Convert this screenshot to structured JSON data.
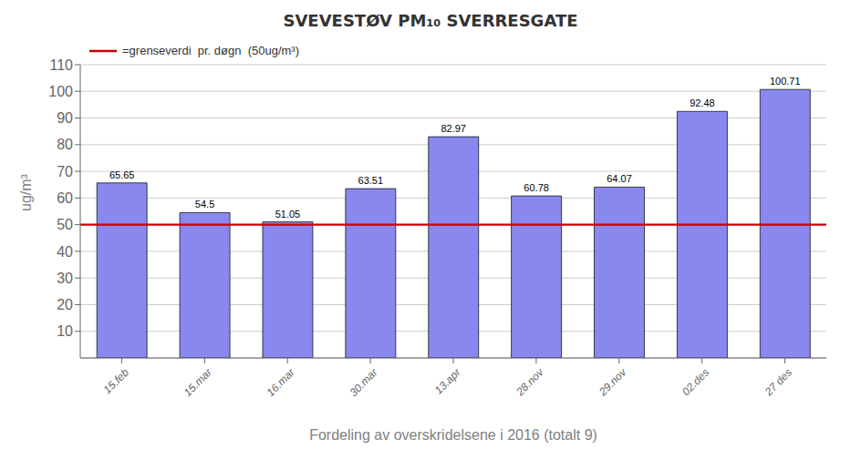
{
  "chart_data": {
    "type": "bar",
    "title": "SVEVESTØV PM₁₀ SVERRESGATE",
    "xlabel": "Fordeling av overskridelsene i 2016 (totalt 9)",
    "ylabel": "ug/m³",
    "categories": [
      "15.feb",
      "15.mar",
      "16.mar",
      "30.mar",
      "13.apr",
      "28.nov",
      "29.nov",
      "02.des",
      "27 des"
    ],
    "values": [
      65.65,
      54.5,
      51.05,
      63.51,
      82.97,
      60.78,
      64.07,
      92.48,
      100.71
    ],
    "color": "#8888ee",
    "ylim": [
      0,
      110
    ],
    "yticks": [
      10,
      20,
      30,
      40,
      50,
      60,
      70,
      80,
      90,
      100,
      110
    ],
    "grid": true,
    "data_labels": true,
    "reference_line": {
      "value": 50,
      "label": "=grenseverdi  pr. døgn  (50ug/m³)",
      "color": "#cc0000"
    }
  }
}
